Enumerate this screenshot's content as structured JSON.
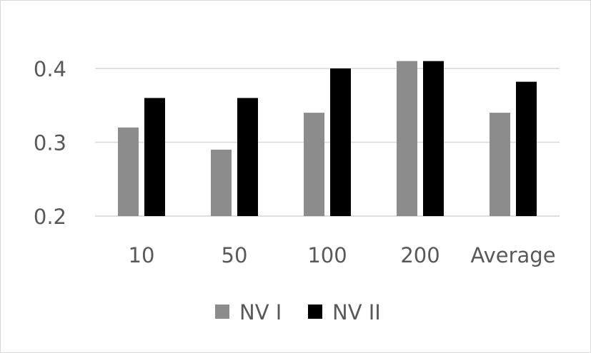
{
  "chart_data": {
    "type": "bar",
    "categories": [
      "10",
      "50",
      "100",
      "200",
      "Average"
    ],
    "series": [
      {
        "name": "NV I",
        "color": "#8c8c8c",
        "values": [
          0.32,
          0.29,
          0.34,
          0.41,
          0.34
        ]
      },
      {
        "name": "NV II",
        "color": "#000000",
        "values": [
          0.36,
          0.36,
          0.4,
          0.41,
          0.382
        ]
      }
    ],
    "ylim": [
      0.2,
      0.4
    ],
    "yticks": [
      "0.2",
      "0.3",
      "0.4"
    ],
    "grid": true,
    "legend_position": "bottom-center",
    "title": "",
    "xlabel": "",
    "ylabel": ""
  }
}
